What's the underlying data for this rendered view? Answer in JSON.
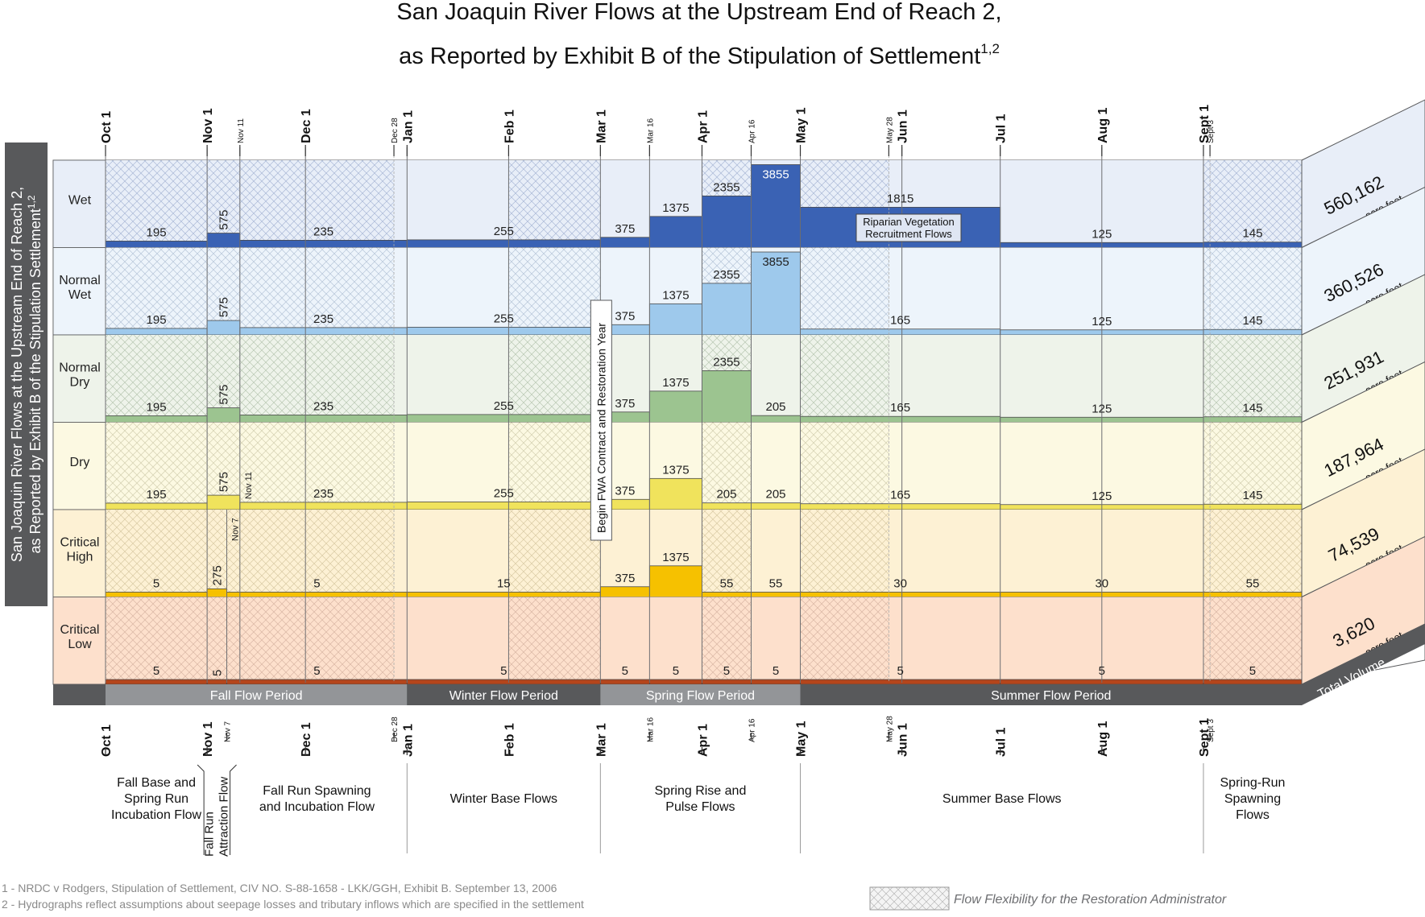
{
  "title_line1": "San Joaquin River Flows at the Upstream End of Reach 2,",
  "title_line2": "as Reported by Exhibit B of the Stipulation of Settlement",
  "title_superscript": "1,2",
  "side_title_line1": "San Joaquin River Flows at the Upstream End of Reach 2,",
  "side_title_line2": "as Reported by Exhibit B of the Stipulation Settlement",
  "side_title_superscript": "1,2",
  "total_volume_label": "Total Volume",
  "volume_unit": "acre feet",
  "footnotes": [
    "1 - NRDC v Rodgers, Stipulation of Settlement, CIV NO. S-88-1658 - LKK/GGH, Exhibit B. September 13, 2006",
    "2 - Hydrographs reflect assumptions about seepage losses and tributary inflows which are specified in the settlement"
  ],
  "legend_flexibility": "Flow Flexibility for the Restoration Administrator",
  "annotation_riparian": [
    "Riparian Vegetation",
    "Recruitment Flows"
  ],
  "annotation_fwa": "Begin FWA Contract and Restoration Year",
  "annotation_nov11": "Nov 11",
  "annotation_nov7": "Nov 7",
  "colors": {
    "wet": "#3a62b4",
    "normal_wet": "#9ec9ec",
    "normal_dry": "#9cc490",
    "dry": "#f0e35c",
    "critical_high": "#f6c100",
    "critical_low": "#b5451b",
    "flow_period_dark": "#58595b",
    "flow_period_light": "#939598"
  },
  "chart_data": {
    "type": "step-area",
    "title": "San Joaquin River Flows at the Upstream End of Reach 2, as Reported by Exhibit B of the Stipulation of Settlement",
    "x_axis": {
      "range": [
        "Oct 1",
        "Oct 1 (next year)"
      ],
      "major_ticks": [
        "Oct 1",
        "Nov 1",
        "Dec 1",
        "Jan 1",
        "Feb 1",
        "Mar 1",
        "Apr 1",
        "May 1",
        "Jun 1",
        "Jul 1",
        "Aug 1",
        "Sept 1"
      ],
      "minor_ticks_top": [
        "Nov 11",
        "Dec 28",
        "Mar 16",
        "Apr 16",
        "May 28",
        "Sept 3"
      ],
      "minor_ticks_bottom": [
        "Nov 7",
        "Dec 28",
        "Mar 16",
        "Apr 16",
        "May 28",
        "Sept 3"
      ]
    },
    "year_types": [
      {
        "name": "Wet",
        "color": "#3a62b4",
        "bg": "#e8eef8",
        "hatch": "#a9b8d6",
        "total_volume": "560,162",
        "segments": [
          {
            "from": "Oct 1",
            "to": "Nov 1",
            "flow": 195
          },
          {
            "from": "Nov 1",
            "to": "Nov 11",
            "flow": 575
          },
          {
            "from": "Nov 11",
            "to": "Jan 1",
            "flow": 235
          },
          {
            "from": "Jan 1",
            "to": "Mar 1",
            "flow": 255
          },
          {
            "from": "Mar 1",
            "to": "Mar 16",
            "flow": 375
          },
          {
            "from": "Mar 16",
            "to": "Apr 1",
            "flow": 1375
          },
          {
            "from": "Apr 1",
            "to": "Apr 16",
            "flow": 2355
          },
          {
            "from": "Apr 16",
            "to": "May 1",
            "flow": 3855
          },
          {
            "from": "May 1",
            "to": "Jul 1",
            "flow": 1815
          },
          {
            "from": "Jul 1",
            "to": "Sept 1",
            "flow": 125
          },
          {
            "from": "Sept 1",
            "to": "Oct 1",
            "flow": 145
          }
        ]
      },
      {
        "name": "Normal Wet",
        "color": "#9ec9ec",
        "bg": "#edf4fb",
        "hatch": "#b6c5d8",
        "total_volume": "360,526",
        "segments": [
          {
            "from": "Oct 1",
            "to": "Nov 1",
            "flow": 195
          },
          {
            "from": "Nov 1",
            "to": "Nov 11",
            "flow": 575
          },
          {
            "from": "Nov 11",
            "to": "Jan 1",
            "flow": 235
          },
          {
            "from": "Jan 1",
            "to": "Mar 1",
            "flow": 255
          },
          {
            "from": "Mar 1",
            "to": "Mar 16",
            "flow": 375
          },
          {
            "from": "Mar 16",
            "to": "Apr 1",
            "flow": 1375
          },
          {
            "from": "Apr 1",
            "to": "Apr 16",
            "flow": 2355
          },
          {
            "from": "Apr 16",
            "to": "May 1",
            "flow": 3855
          },
          {
            "from": "May 1",
            "to": "Jul 1",
            "flow": 165
          },
          {
            "from": "Jul 1",
            "to": "Sept 1",
            "flow": 125
          },
          {
            "from": "Sept 1",
            "to": "Oct 1",
            "flow": 145
          }
        ]
      },
      {
        "name": "Normal Dry",
        "color": "#9cc490",
        "bg": "#eef3ea",
        "hatch": "#b8c7b2",
        "total_volume": "251,931",
        "segments": [
          {
            "from": "Oct 1",
            "to": "Nov 1",
            "flow": 195
          },
          {
            "from": "Nov 1",
            "to": "Nov 11",
            "flow": 575
          },
          {
            "from": "Nov 11",
            "to": "Jan 1",
            "flow": 235
          },
          {
            "from": "Jan 1",
            "to": "Mar 1",
            "flow": 255
          },
          {
            "from": "Mar 1",
            "to": "Mar 16",
            "flow": 375
          },
          {
            "from": "Mar 16",
            "to": "Apr 1",
            "flow": 1375
          },
          {
            "from": "Apr 1",
            "to": "Apr 16",
            "flow": 2355
          },
          {
            "from": "Apr 16",
            "to": "May 1",
            "flow": 205
          },
          {
            "from": "May 1",
            "to": "Jul 1",
            "flow": 165
          },
          {
            "from": "Jul 1",
            "to": "Sept 1",
            "flow": 125
          },
          {
            "from": "Sept 1",
            "to": "Oct 1",
            "flow": 145
          }
        ]
      },
      {
        "name": "Dry",
        "color": "#f0e35c",
        "bg": "#fcf9e2",
        "hatch": "#d3cfb0",
        "total_volume": "187,964",
        "segments": [
          {
            "from": "Oct 1",
            "to": "Nov 1",
            "flow": 195
          },
          {
            "from": "Nov 1",
            "to": "Nov 11",
            "flow": 575
          },
          {
            "from": "Nov 11",
            "to": "Jan 1",
            "flow": 235
          },
          {
            "from": "Jan 1",
            "to": "Mar 1",
            "flow": 255
          },
          {
            "from": "Mar 1",
            "to": "Mar 16",
            "flow": 375
          },
          {
            "from": "Mar 16",
            "to": "Apr 1",
            "flow": 1375
          },
          {
            "from": "Apr 1",
            "to": "Apr 16",
            "flow": 205
          },
          {
            "from": "Apr 16",
            "to": "May 1",
            "flow": 205
          },
          {
            "from": "May 1",
            "to": "Jul 1",
            "flow": 165
          },
          {
            "from": "Jul 1",
            "to": "Sept 1",
            "flow": 125
          },
          {
            "from": "Sept 1",
            "to": "Oct 1",
            "flow": 145
          }
        ]
      },
      {
        "name": "Critical High",
        "color": "#f6c100",
        "bg": "#fdf1d4",
        "hatch": "#d8c9a3",
        "total_volume": "74,539",
        "segments": [
          {
            "from": "Oct 1",
            "to": "Nov 1",
            "flow": 5
          },
          {
            "from": "Nov 1",
            "to": "Nov 7",
            "flow": 275
          },
          {
            "from": "Nov 7",
            "to": "Jan 1",
            "flow": 5
          },
          {
            "from": "Jan 1",
            "to": "Mar 1",
            "flow": 15
          },
          {
            "from": "Mar 1",
            "to": "Mar 16",
            "flow": 375
          },
          {
            "from": "Mar 16",
            "to": "Apr 1",
            "flow": 1375
          },
          {
            "from": "Apr 1",
            "to": "Apr 16",
            "flow": 55
          },
          {
            "from": "Apr 16",
            "to": "May 1",
            "flow": 55
          },
          {
            "from": "May 1",
            "to": "Jul 1",
            "flow": 30
          },
          {
            "from": "Jul 1",
            "to": "Sept 1",
            "flow": 30
          },
          {
            "from": "Sept 1",
            "to": "Oct 1",
            "flow": 55
          }
        ]
      },
      {
        "name": "Critical Low",
        "color": "#b5451b",
        "bg": "#fde0cc",
        "hatch": "#d9b6a4",
        "total_volume": "3,620",
        "segments": [
          {
            "from": "Oct 1",
            "to": "Nov 1",
            "flow": 5
          },
          {
            "from": "Nov 1",
            "to": "Nov 7",
            "flow": 5
          },
          {
            "from": "Nov 7",
            "to": "Jan 1",
            "flow": 5
          },
          {
            "from": "Jan 1",
            "to": "Mar 1",
            "flow": 5
          },
          {
            "from": "Mar 1",
            "to": "Mar 16",
            "flow": 5
          },
          {
            "from": "Mar 16",
            "to": "Apr 1",
            "flow": 5
          },
          {
            "from": "Apr 1",
            "to": "Apr 16",
            "flow": 5
          },
          {
            "from": "Apr 16",
            "to": "May 1",
            "flow": 5
          },
          {
            "from": "May 1",
            "to": "Jul 1",
            "flow": 5
          },
          {
            "from": "Jul 1",
            "to": "Sept 1",
            "flow": 5
          },
          {
            "from": "Sept 1",
            "to": "Oct 1",
            "flow": 5
          }
        ]
      }
    ],
    "flow_periods": [
      {
        "name": "Fall Flow Period",
        "from": "Oct 1",
        "to": "Jan 1",
        "shade": "light"
      },
      {
        "name": "Winter Flow Period",
        "from": "Jan 1",
        "to": "Mar 1",
        "shade": "dark"
      },
      {
        "name": "Spring Flow Period",
        "from": "Mar 1",
        "to": "May 1",
        "shade": "light"
      },
      {
        "name": "Summer Flow Period",
        "from": "May 1",
        "to": "Oct 1",
        "shade": "dark"
      }
    ],
    "flow_types": [
      {
        "name": "Fall Base and Spring Run Incubation Flow",
        "from": "Oct 1",
        "to": "Nov 1"
      },
      {
        "name": "Fall Run Attraction Flow",
        "from": "Nov 1",
        "to": "Nov 7"
      },
      {
        "name": "Fall Run Spawning and Incubation Flow",
        "from": "Nov 7",
        "to": "Jan 1"
      },
      {
        "name": "Winter Base Flows",
        "from": "Jan 1",
        "to": "Mar 1"
      },
      {
        "name": "Spring Rise and Pulse Flows",
        "from": "Mar 1",
        "to": "May 1"
      },
      {
        "name": "Summer Base Flows",
        "from": "May 1",
        "to": "Sept 1"
      },
      {
        "name": "Spring-Run Spawning Flows",
        "from": "Sept 1",
        "to": "Oct 1"
      }
    ],
    "flexibility_ranges": [
      {
        "from": "Oct 1",
        "to": "Dec 28"
      },
      {
        "from": "Feb 1",
        "to": "Mar 1"
      },
      {
        "from": "Apr 1",
        "to": "Apr 16"
      },
      {
        "from": "May 1",
        "to": "May 28"
      },
      {
        "from": "Sept 1",
        "to": "Oct 1"
      }
    ]
  }
}
